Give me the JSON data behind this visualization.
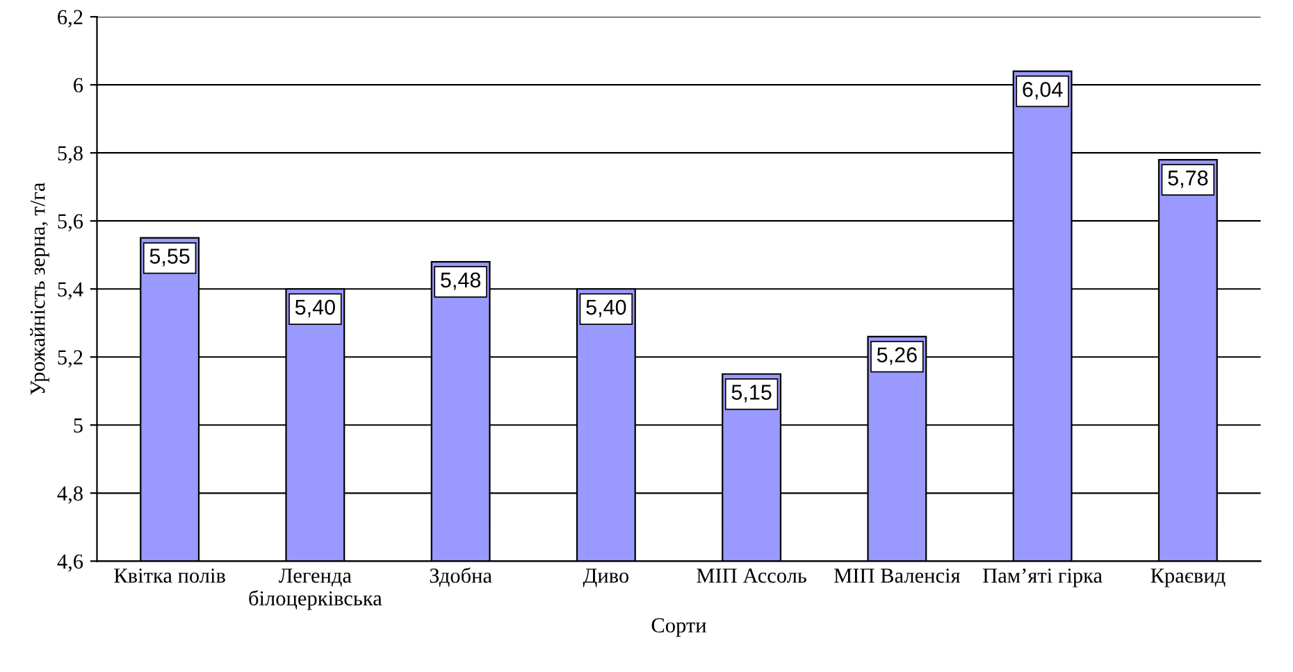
{
  "chart_data": {
    "type": "bar",
    "categories": [
      "Квітка полів",
      "Легенда\nбілоцерківська",
      "Здобна",
      "Диво",
      "МІП Ассоль",
      "МІП Валенсія",
      "Пам’яті гірка",
      "Краєвид"
    ],
    "values": [
      5.55,
      5.4,
      5.48,
      5.4,
      5.15,
      5.26,
      6.04,
      5.78
    ],
    "value_labels": [
      "5,55",
      "5,40",
      "5,48",
      "5,40",
      "5,15",
      "5,26",
      "6,04",
      "5,78"
    ],
    "color": "#9999ff",
    "xlabel": "Сорти",
    "ylabel": "Урожайність зерна, т/га",
    "ylim": [
      4.6,
      6.2
    ],
    "yticks": [
      {
        "value": 4.6,
        "label": "4,6"
      },
      {
        "value": 4.8,
        "label": "4,8"
      },
      5,
      {
        "value": 5.2,
        "label": "5,2"
      },
      {
        "value": 5.4,
        "label": "5,4"
      },
      {
        "value": 5.6,
        "label": "5,6"
      },
      {
        "value": 5.8,
        "label": "5,8"
      },
      6,
      {
        "value": 6.2,
        "label": "6,2"
      }
    ],
    "grid": "y"
  }
}
